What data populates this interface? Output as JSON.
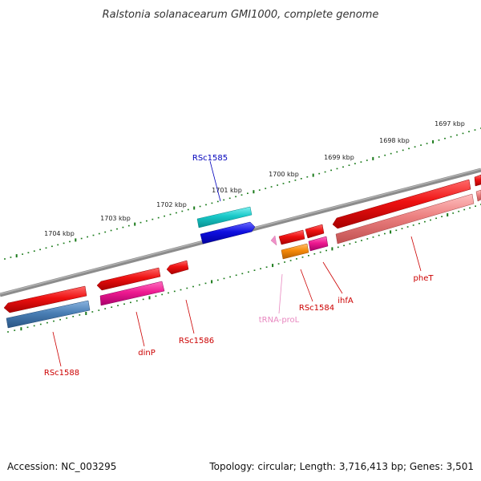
{
  "title": "Ralstonia solanacearum GMI1000, complete genome",
  "footer": {
    "accession": "Accession: NC_003295",
    "summary": "Topology: circular; Length: 3,716,413 bp; Genes: 3,501"
  },
  "scale_labels": [
    "1704 kbp",
    "1703 kbp",
    "1702 kbp",
    "1701 kbp",
    "1700 kbp",
    "1699 kbp",
    "1698 kbp",
    "1697 kbp"
  ],
  "gene_labels": {
    "rsc1585": "RSc1585",
    "rsc1588": "RSc1588",
    "dinp": "dinP",
    "rsc1586": "RSc1586",
    "trna_prol": "tRNA-proL",
    "rsc1584": "RSc1584",
    "ihfa": "ihfA",
    "phet": "pheT"
  },
  "colors": {
    "backbone": "#8c8c8c",
    "tick": "#1a7a1a",
    "cds_red": "#ee1111",
    "cds_pink": "#ee1a90",
    "cds_salmon": "#ec8080",
    "cds_steel": "#4a7fb5",
    "cds_cyan": "#18c8c8",
    "cds_blue": "#1010e0",
    "cds_orange": "#f58a0a",
    "trna": "#f090c8",
    "label_red": "#cc0000",
    "label_blue": "#0000bb",
    "label_pink": "#e888c0"
  }
}
